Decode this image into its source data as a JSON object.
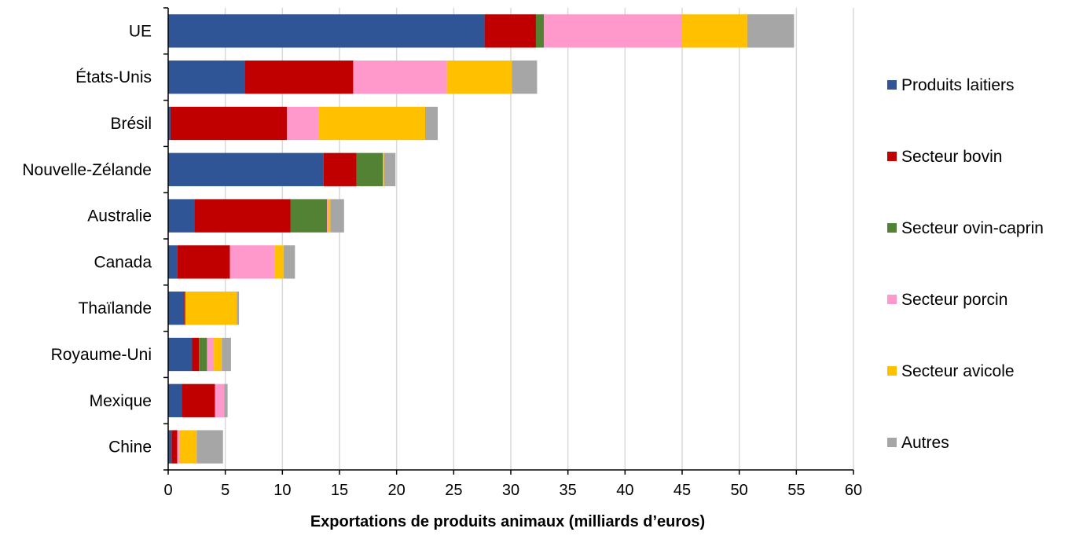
{
  "chart_data": {
    "type": "bar",
    "orientation": "horizontal",
    "stacked": true,
    "title": "",
    "xlabel": "Exportations de produits animaux (milliards d’euros)",
    "ylabel": "",
    "xlim": [
      0,
      60
    ],
    "xticks": [
      0,
      5,
      10,
      15,
      20,
      25,
      30,
      35,
      40,
      45,
      50,
      55,
      60
    ],
    "grid": "vertical",
    "legend_position": "right",
    "categories": [
      "UE",
      "États-Unis",
      "Brésil",
      "Nouvelle-Zélande",
      "Australie",
      "Canada",
      "Thaïlande",
      "Royaume-Uni",
      "Mexique",
      "Chine"
    ],
    "series": [
      {
        "name": "Produits laitiers",
        "color": "#2f5597",
        "values": [
          27.7,
          6.7,
          0.2,
          13.6,
          2.3,
          0.8,
          1.4,
          2.1,
          1.2,
          0.3
        ]
      },
      {
        "name": "Secteur bovin",
        "color": "#c00000",
        "values": [
          4.5,
          9.5,
          10.2,
          2.9,
          8.4,
          4.6,
          0.1,
          0.6,
          2.9,
          0.5
        ]
      },
      {
        "name": "Secteur ovin-caprin",
        "color": "#548235",
        "values": [
          0.7,
          0.0,
          0.0,
          2.3,
          3.2,
          0.0,
          0.0,
          0.7,
          0.0,
          0.0
        ]
      },
      {
        "name": "Secteur porcin",
        "color": "#ff99cc",
        "values": [
          12.1,
          8.2,
          2.8,
          0.0,
          0.1,
          3.9,
          0.0,
          0.6,
          0.8,
          0.2
        ]
      },
      {
        "name": "Secteur avicole",
        "color": "#ffc000",
        "values": [
          5.7,
          5.7,
          9.3,
          0.1,
          0.2,
          0.8,
          4.5,
          0.7,
          0.0,
          1.5
        ]
      },
      {
        "name": "Autres",
        "color": "#a6a6a6",
        "values": [
          4.1,
          2.2,
          1.1,
          1.0,
          1.2,
          1.0,
          0.2,
          0.8,
          0.3,
          2.3
        ]
      }
    ]
  }
}
